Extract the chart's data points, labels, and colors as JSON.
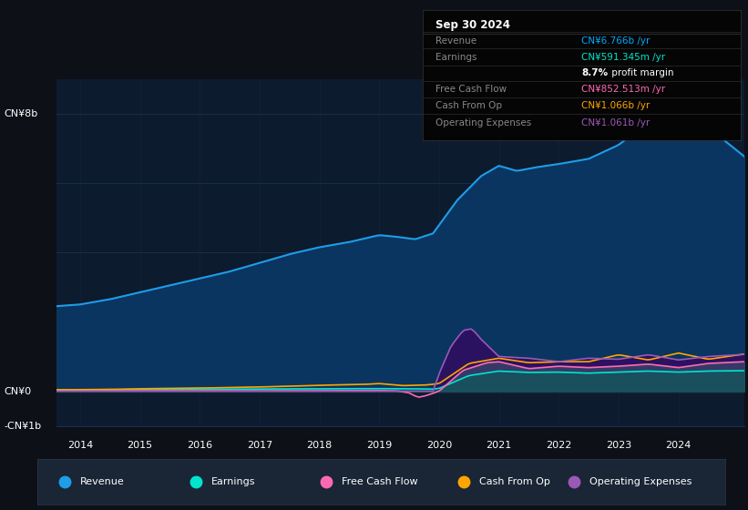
{
  "bg_color": "#0d1117",
  "plot_bg_color": "#0d1b2e",
  "grid_color": "#1a3050",
  "info_bg": "#000000",
  "title_date": "Sep 30 2024",
  "info_rows": [
    {
      "label": "Revenue",
      "value": "CN¥6.766b /yr",
      "value_color": "#00aaff",
      "extra": null
    },
    {
      "label": "Earnings",
      "value": "CN¥591.345m /yr",
      "value_color": "#00e5cc",
      "extra": [
        "8.7%",
        " profit margin"
      ]
    },
    {
      "label": "Free Cash Flow",
      "value": "CN¥852.513m /yr",
      "value_color": "#ff69b4",
      "extra": null
    },
    {
      "label": "Cash From Op",
      "value": "CN¥1.066b /yr",
      "value_color": "#ffa500",
      "extra": null
    },
    {
      "label": "Operating Expenses",
      "value": "CN¥1.061b /yr",
      "value_color": "#9b59b6",
      "extra": null
    }
  ],
  "revenue_color": "#1e9de8",
  "revenue_fill": "#0a3560",
  "earnings_color": "#00e5cc",
  "earnings_fill": "#006655",
  "fcf_color": "#ff69b4",
  "fcf_fill": "#5a3050",
  "cfo_color": "#ffa500",
  "opex_color": "#9b59b6",
  "opex_fill": "#2d1060",
  "legend_items": [
    {
      "label": "Revenue",
      "color": "#1e9de8"
    },
    {
      "label": "Earnings",
      "color": "#00e5cc"
    },
    {
      "label": "Free Cash Flow",
      "color": "#ff69b4"
    },
    {
      "label": "Cash From Op",
      "color": "#ffa500"
    },
    {
      "label": "Operating Expenses",
      "color": "#9b59b6"
    }
  ],
  "ylim_min": -1.0,
  "ylim_max": 9.0,
  "xmin": 2013.6,
  "xmax": 2025.1
}
